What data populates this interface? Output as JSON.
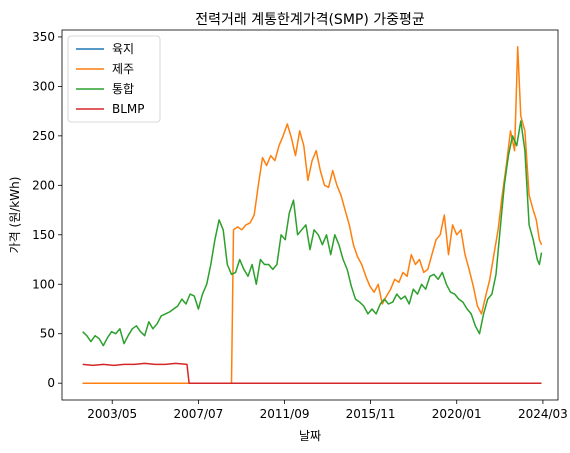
{
  "chart_data": {
    "type": "line",
    "title": "전력거래 계통한계가격(SMP) 가중평균",
    "xlabel": "날짜",
    "ylabel": "가격 (원/kWh)",
    "xlim": [
      2000.9,
      2024.9
    ],
    "ylim": [
      -17,
      357
    ],
    "x_ticks": [
      {
        "value": 2003.33,
        "label": "2003/05"
      },
      {
        "value": 2007.5,
        "label": "2007/07"
      },
      {
        "value": 2011.67,
        "label": "2011/09"
      },
      {
        "value": 2015.83,
        "label": "2015/11"
      },
      {
        "value": 2020.0,
        "label": "2020/01"
      },
      {
        "value": 2024.17,
        "label": "2024/03"
      }
    ],
    "y_ticks": [
      0,
      50,
      100,
      150,
      200,
      250,
      300,
      350
    ],
    "legend_position": "top-left",
    "series": [
      {
        "name": "육지",
        "color": "#1f77b4",
        "points": [
          [
            2001.9,
            0
          ],
          [
            2024.1,
            0
          ]
        ]
      },
      {
        "name": "제주",
        "color": "#ff7f0e",
        "points": [
          [
            2001.9,
            0
          ],
          [
            2009.1,
            0
          ],
          [
            2009.2,
            155
          ],
          [
            2009.4,
            158
          ],
          [
            2009.6,
            155
          ],
          [
            2009.8,
            160
          ],
          [
            2010.0,
            162
          ],
          [
            2010.2,
            170
          ],
          [
            2010.4,
            200
          ],
          [
            2010.6,
            228
          ],
          [
            2010.8,
            220
          ],
          [
            2011.0,
            230
          ],
          [
            2011.2,
            225
          ],
          [
            2011.4,
            240
          ],
          [
            2011.6,
            250
          ],
          [
            2011.8,
            262
          ],
          [
            2012.0,
            248
          ],
          [
            2012.2,
            230
          ],
          [
            2012.4,
            255
          ],
          [
            2012.6,
            240
          ],
          [
            2012.8,
            205
          ],
          [
            2013.0,
            225
          ],
          [
            2013.2,
            235
          ],
          [
            2013.4,
            215
          ],
          [
            2013.6,
            200
          ],
          [
            2013.8,
            198
          ],
          [
            2014.0,
            215
          ],
          [
            2014.2,
            200
          ],
          [
            2014.4,
            190
          ],
          [
            2014.6,
            175
          ],
          [
            2014.8,
            160
          ],
          [
            2015.0,
            140
          ],
          [
            2015.2,
            128
          ],
          [
            2015.4,
            120
          ],
          [
            2015.6,
            108
          ],
          [
            2015.8,
            98
          ],
          [
            2016.0,
            92
          ],
          [
            2016.2,
            100
          ],
          [
            2016.4,
            80
          ],
          [
            2016.6,
            88
          ],
          [
            2016.8,
            95
          ],
          [
            2017.0,
            105
          ],
          [
            2017.2,
            102
          ],
          [
            2017.4,
            112
          ],
          [
            2017.6,
            108
          ],
          [
            2017.8,
            130
          ],
          [
            2018.0,
            120
          ],
          [
            2018.2,
            125
          ],
          [
            2018.4,
            112
          ],
          [
            2018.6,
            115
          ],
          [
            2018.8,
            130
          ],
          [
            2019.0,
            145
          ],
          [
            2019.2,
            150
          ],
          [
            2019.4,
            170
          ],
          [
            2019.6,
            130
          ],
          [
            2019.8,
            160
          ],
          [
            2020.0,
            150
          ],
          [
            2020.2,
            155
          ],
          [
            2020.4,
            130
          ],
          [
            2020.6,
            115
          ],
          [
            2020.8,
            98
          ],
          [
            2021.0,
            78
          ],
          [
            2021.2,
            70
          ],
          [
            2021.4,
            88
          ],
          [
            2021.6,
            105
          ],
          [
            2021.8,
            130
          ],
          [
            2022.0,
            155
          ],
          [
            2022.2,
            190
          ],
          [
            2022.4,
            220
          ],
          [
            2022.6,
            255
          ],
          [
            2022.8,
            235
          ],
          [
            2022.95,
            340
          ],
          [
            2023.1,
            270
          ],
          [
            2023.3,
            255
          ],
          [
            2023.5,
            190
          ],
          [
            2023.7,
            175
          ],
          [
            2023.85,
            165
          ],
          [
            2024.0,
            145
          ],
          [
            2024.1,
            140
          ]
        ]
      },
      {
        "name": "통합",
        "color": "#2ca02c",
        "points": [
          [
            2001.9,
            52
          ],
          [
            2002.1,
            48
          ],
          [
            2002.3,
            42
          ],
          [
            2002.5,
            48
          ],
          [
            2002.7,
            45
          ],
          [
            2002.9,
            38
          ],
          [
            2003.1,
            46
          ],
          [
            2003.3,
            52
          ],
          [
            2003.5,
            50
          ],
          [
            2003.7,
            55
          ],
          [
            2003.9,
            40
          ],
          [
            2004.1,
            48
          ],
          [
            2004.3,
            55
          ],
          [
            2004.5,
            58
          ],
          [
            2004.7,
            52
          ],
          [
            2004.9,
            48
          ],
          [
            2005.1,
            62
          ],
          [
            2005.3,
            55
          ],
          [
            2005.5,
            60
          ],
          [
            2005.7,
            68
          ],
          [
            2005.9,
            70
          ],
          [
            2006.1,
            72
          ],
          [
            2006.3,
            75
          ],
          [
            2006.5,
            78
          ],
          [
            2006.7,
            85
          ],
          [
            2006.9,
            80
          ],
          [
            2007.1,
            90
          ],
          [
            2007.3,
            88
          ],
          [
            2007.5,
            75
          ],
          [
            2007.7,
            90
          ],
          [
            2007.9,
            100
          ],
          [
            2008.1,
            120
          ],
          [
            2008.3,
            145
          ],
          [
            2008.5,
            165
          ],
          [
            2008.7,
            155
          ],
          [
            2008.9,
            120
          ],
          [
            2009.1,
            110
          ],
          [
            2009.3,
            112
          ],
          [
            2009.5,
            125
          ],
          [
            2009.7,
            115
          ],
          [
            2009.9,
            108
          ],
          [
            2010.1,
            120
          ],
          [
            2010.3,
            100
          ],
          [
            2010.5,
            125
          ],
          [
            2010.7,
            120
          ],
          [
            2010.9,
            120
          ],
          [
            2011.1,
            115
          ],
          [
            2011.3,
            120
          ],
          [
            2011.5,
            150
          ],
          [
            2011.7,
            145
          ],
          [
            2011.9,
            172
          ],
          [
            2012.1,
            185
          ],
          [
            2012.3,
            150
          ],
          [
            2012.5,
            155
          ],
          [
            2012.7,
            160
          ],
          [
            2012.9,
            135
          ],
          [
            2013.1,
            155
          ],
          [
            2013.3,
            150
          ],
          [
            2013.5,
            140
          ],
          [
            2013.7,
            150
          ],
          [
            2013.9,
            130
          ],
          [
            2014.1,
            150
          ],
          [
            2014.3,
            140
          ],
          [
            2014.5,
            125
          ],
          [
            2014.7,
            115
          ],
          [
            2014.9,
            98
          ],
          [
            2015.1,
            85
          ],
          [
            2015.3,
            82
          ],
          [
            2015.5,
            78
          ],
          [
            2015.7,
            70
          ],
          [
            2015.9,
            75
          ],
          [
            2016.1,
            70
          ],
          [
            2016.3,
            80
          ],
          [
            2016.5,
            85
          ],
          [
            2016.7,
            80
          ],
          [
            2016.9,
            82
          ],
          [
            2017.1,
            90
          ],
          [
            2017.3,
            85
          ],
          [
            2017.5,
            88
          ],
          [
            2017.7,
            80
          ],
          [
            2017.9,
            95
          ],
          [
            2018.1,
            90
          ],
          [
            2018.3,
            100
          ],
          [
            2018.5,
            95
          ],
          [
            2018.7,
            108
          ],
          [
            2018.9,
            110
          ],
          [
            2019.1,
            105
          ],
          [
            2019.3,
            112
          ],
          [
            2019.5,
            100
          ],
          [
            2019.7,
            92
          ],
          [
            2019.9,
            90
          ],
          [
            2020.1,
            85
          ],
          [
            2020.3,
            82
          ],
          [
            2020.5,
            75
          ],
          [
            2020.7,
            70
          ],
          [
            2020.9,
            58
          ],
          [
            2021.1,
            50
          ],
          [
            2021.3,
            70
          ],
          [
            2021.5,
            85
          ],
          [
            2021.7,
            90
          ],
          [
            2021.9,
            110
          ],
          [
            2022.1,
            155
          ],
          [
            2022.3,
            200
          ],
          [
            2022.5,
            230
          ],
          [
            2022.7,
            250
          ],
          [
            2022.9,
            240
          ],
          [
            2023.1,
            265
          ],
          [
            2023.3,
            235
          ],
          [
            2023.5,
            160
          ],
          [
            2023.7,
            145
          ],
          [
            2023.9,
            125
          ],
          [
            2024.0,
            120
          ],
          [
            2024.1,
            132
          ]
        ]
      },
      {
        "name": "BLMP",
        "color": "#d62728",
        "points": [
          [
            2001.9,
            19
          ],
          [
            2002.4,
            18
          ],
          [
            2002.9,
            19
          ],
          [
            2003.4,
            18
          ],
          [
            2003.9,
            19
          ],
          [
            2004.4,
            19
          ],
          [
            2004.9,
            20
          ],
          [
            2005.4,
            19
          ],
          [
            2005.9,
            19
          ],
          [
            2006.4,
            20
          ],
          [
            2006.95,
            19
          ],
          [
            2007.05,
            0
          ],
          [
            2024.1,
            0
          ]
        ]
      }
    ]
  }
}
